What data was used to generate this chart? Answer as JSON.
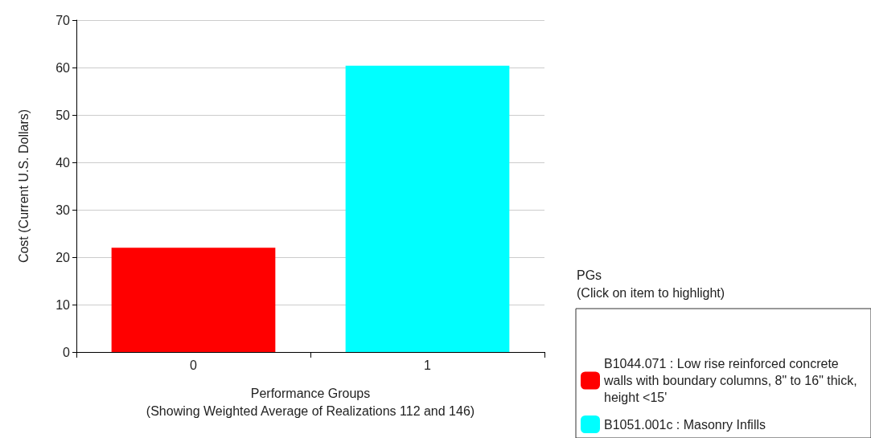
{
  "chart_data": {
    "type": "bar",
    "xlabel": "Performance Groups\n(Showing Weighted Average of Realizations 112 and 146)",
    "ylabel": "Cost (Current U.S. Dollars)",
    "legend_title": "PGs\n(Click on item to highlight)",
    "categories": [
      "0",
      "1"
    ],
    "series": [
      {
        "name": "B1044.071 : Low rise reinforced concrete walls with boundary columns, 8\" to 16\" thick, height <15'",
        "color": "#ff0000",
        "values": [
          22,
          null
        ]
      },
      {
        "name": "B1051.001c : Masonry Infills",
        "color": "#00ffff",
        "values": [
          null,
          60.4
        ]
      }
    ],
    "ylim": [
      0,
      70
    ],
    "yticks": [
      0,
      10,
      20,
      30,
      40,
      50,
      60,
      70
    ],
    "grid": "y",
    "legend": "bottom right"
  }
}
